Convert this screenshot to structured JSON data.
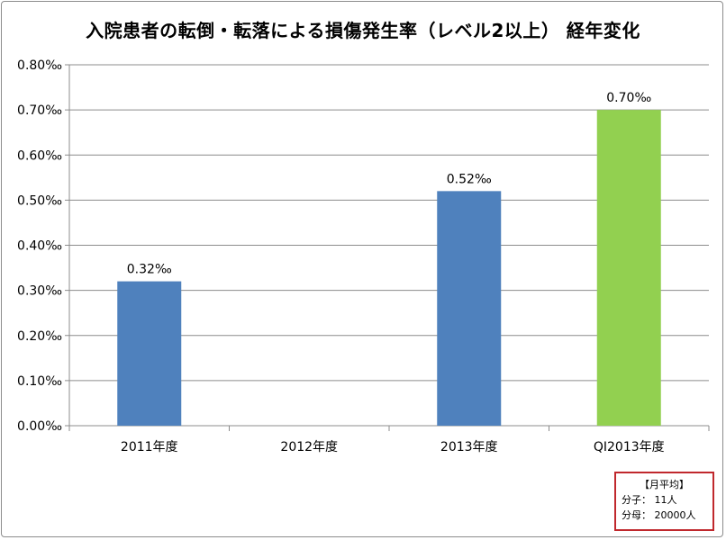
{
  "chart_data": {
    "type": "bar",
    "title": "入院患者の転倒・転落による損傷発生率（レベル2以上） 経年変化",
    "categories": [
      "2011年度",
      "2012年度",
      "2013年度",
      "QI2013年度"
    ],
    "values": [
      0.32,
      null,
      0.52,
      0.7
    ],
    "data_labels": [
      "0.32‰",
      "",
      "0.52‰",
      "0.70‰"
    ],
    "bar_colors": [
      "#4f81bd",
      "#4f81bd",
      "#4f81bd",
      "#92d050"
    ],
    "ylim": [
      0,
      0.8
    ],
    "yticks": [
      0.0,
      0.1,
      0.2,
      0.3,
      0.4,
      0.5,
      0.6,
      0.7,
      0.8
    ],
    "ytick_labels": [
      "0.00‰",
      "0.10‰",
      "0.20‰",
      "0.30‰",
      "0.40‰",
      "0.50‰",
      "0.60‰",
      "0.70‰",
      "0.80‰"
    ],
    "grid": true,
    "legend": "none",
    "xlabel": "",
    "ylabel": ""
  },
  "note": {
    "heading": "【月平均】",
    "numerator": "分子： 11人",
    "denominator": "分母： 20000人",
    "border_color": "#c0282d"
  }
}
